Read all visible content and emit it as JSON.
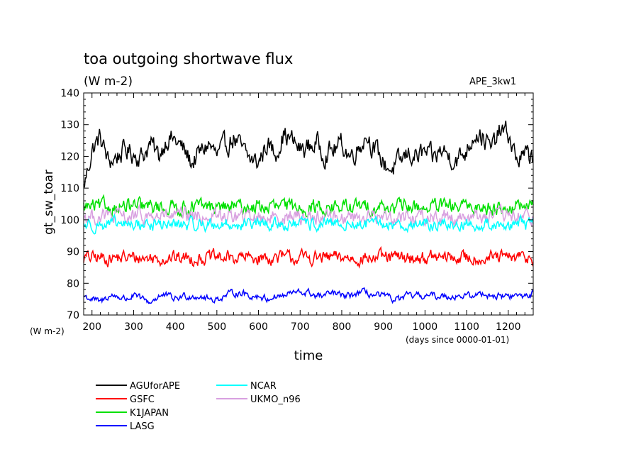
{
  "chart_data": {
    "type": "line",
    "title": "toa outgoing shortwave flux",
    "units": "(W m-2)",
    "tag": "APE_3kw1",
    "ylabel": "gt_sw_toar",
    "y_units": "(W m-2)",
    "xlabel": "time",
    "x_units": "(days since 0000-01-01)",
    "xlim": [
      180,
      1260
    ],
    "ylim": [
      70,
      140
    ],
    "x_ticks": [
      200,
      300,
      400,
      500,
      600,
      700,
      800,
      900,
      1000,
      1100,
      1200
    ],
    "y_ticks": [
      70,
      80,
      90,
      100,
      110,
      120,
      130,
      140
    ],
    "grid": false,
    "legend_position": "bottom-left",
    "series": [
      {
        "name": "AGUforAPE",
        "color": "#000000",
        "keyframes": {
          "x": [
            180,
            200,
            220,
            240,
            260,
            280,
            300,
            320,
            340,
            360,
            380,
            400,
            420,
            440,
            460,
            480,
            500,
            520,
            540,
            560,
            580,
            600,
            620,
            640,
            660,
            680,
            700,
            720,
            740,
            760,
            780,
            800,
            820,
            840,
            860,
            880,
            900,
            920,
            940,
            960,
            980,
            1000,
            1020,
            1040,
            1060,
            1080,
            1100,
            1120,
            1140,
            1160,
            1180,
            1200,
            1220,
            1240,
            1260
          ],
          "y": [
            110,
            122,
            126,
            118,
            120,
            122,
            121,
            120,
            124,
            120,
            126,
            125,
            122,
            118,
            121,
            124,
            120,
            123,
            126,
            122,
            119,
            118,
            124,
            121,
            127,
            125,
            122,
            123,
            124,
            121,
            122,
            124,
            120,
            123,
            127,
            122,
            118,
            116,
            118,
            121,
            120,
            121,
            119,
            122,
            120,
            119,
            122,
            128,
            126,
            122,
            128,
            127,
            119,
            120,
            120
          ]
        },
        "noise": 2.8
      },
      {
        "name": "GSFC",
        "color": "#ff0000",
        "mean": 88,
        "noise": 1.8
      },
      {
        "name": "K1JAPAN",
        "color": "#00e000",
        "mean": 104,
        "noise": 2.0
      },
      {
        "name": "LASG",
        "color": "#0000ff",
        "keyframes": {
          "x": [
            180,
            200,
            220,
            240,
            260,
            280,
            300,
            320,
            340,
            360,
            380,
            400,
            420,
            440,
            460,
            480,
            500,
            520,
            540,
            560,
            580,
            600,
            620,
            640,
            660,
            680,
            700,
            720,
            740,
            760,
            780,
            800,
            820,
            840,
            860,
            880,
            900,
            920,
            940,
            960,
            980,
            1000,
            1020,
            1040,
            1060,
            1080,
            1100,
            1120,
            1140,
            1160,
            1180,
            1200,
            1220,
            1240,
            1260
          ],
          "y": [
            76,
            75,
            74,
            76,
            76,
            75,
            76,
            75,
            74,
            76,
            76,
            75,
            76,
            76,
            76,
            75,
            75,
            76,
            77,
            77,
            76,
            76,
            75,
            76,
            76,
            77,
            77,
            77,
            76,
            76,
            77,
            76,
            76,
            77,
            77,
            76,
            76,
            75,
            75,
            76,
            76,
            76,
            76,
            76,
            76,
            76,
            76,
            76,
            77,
            76,
            76,
            76,
            76,
            76,
            77
          ]
        },
        "noise": 0.9
      },
      {
        "name": "NCAR",
        "color": "#00ffff",
        "mean": 98.5,
        "noise": 1.6
      },
      {
        "name": "UKMO_n96",
        "color": "#d8a0e0",
        "mean": 101,
        "noise": 2.0
      }
    ]
  }
}
